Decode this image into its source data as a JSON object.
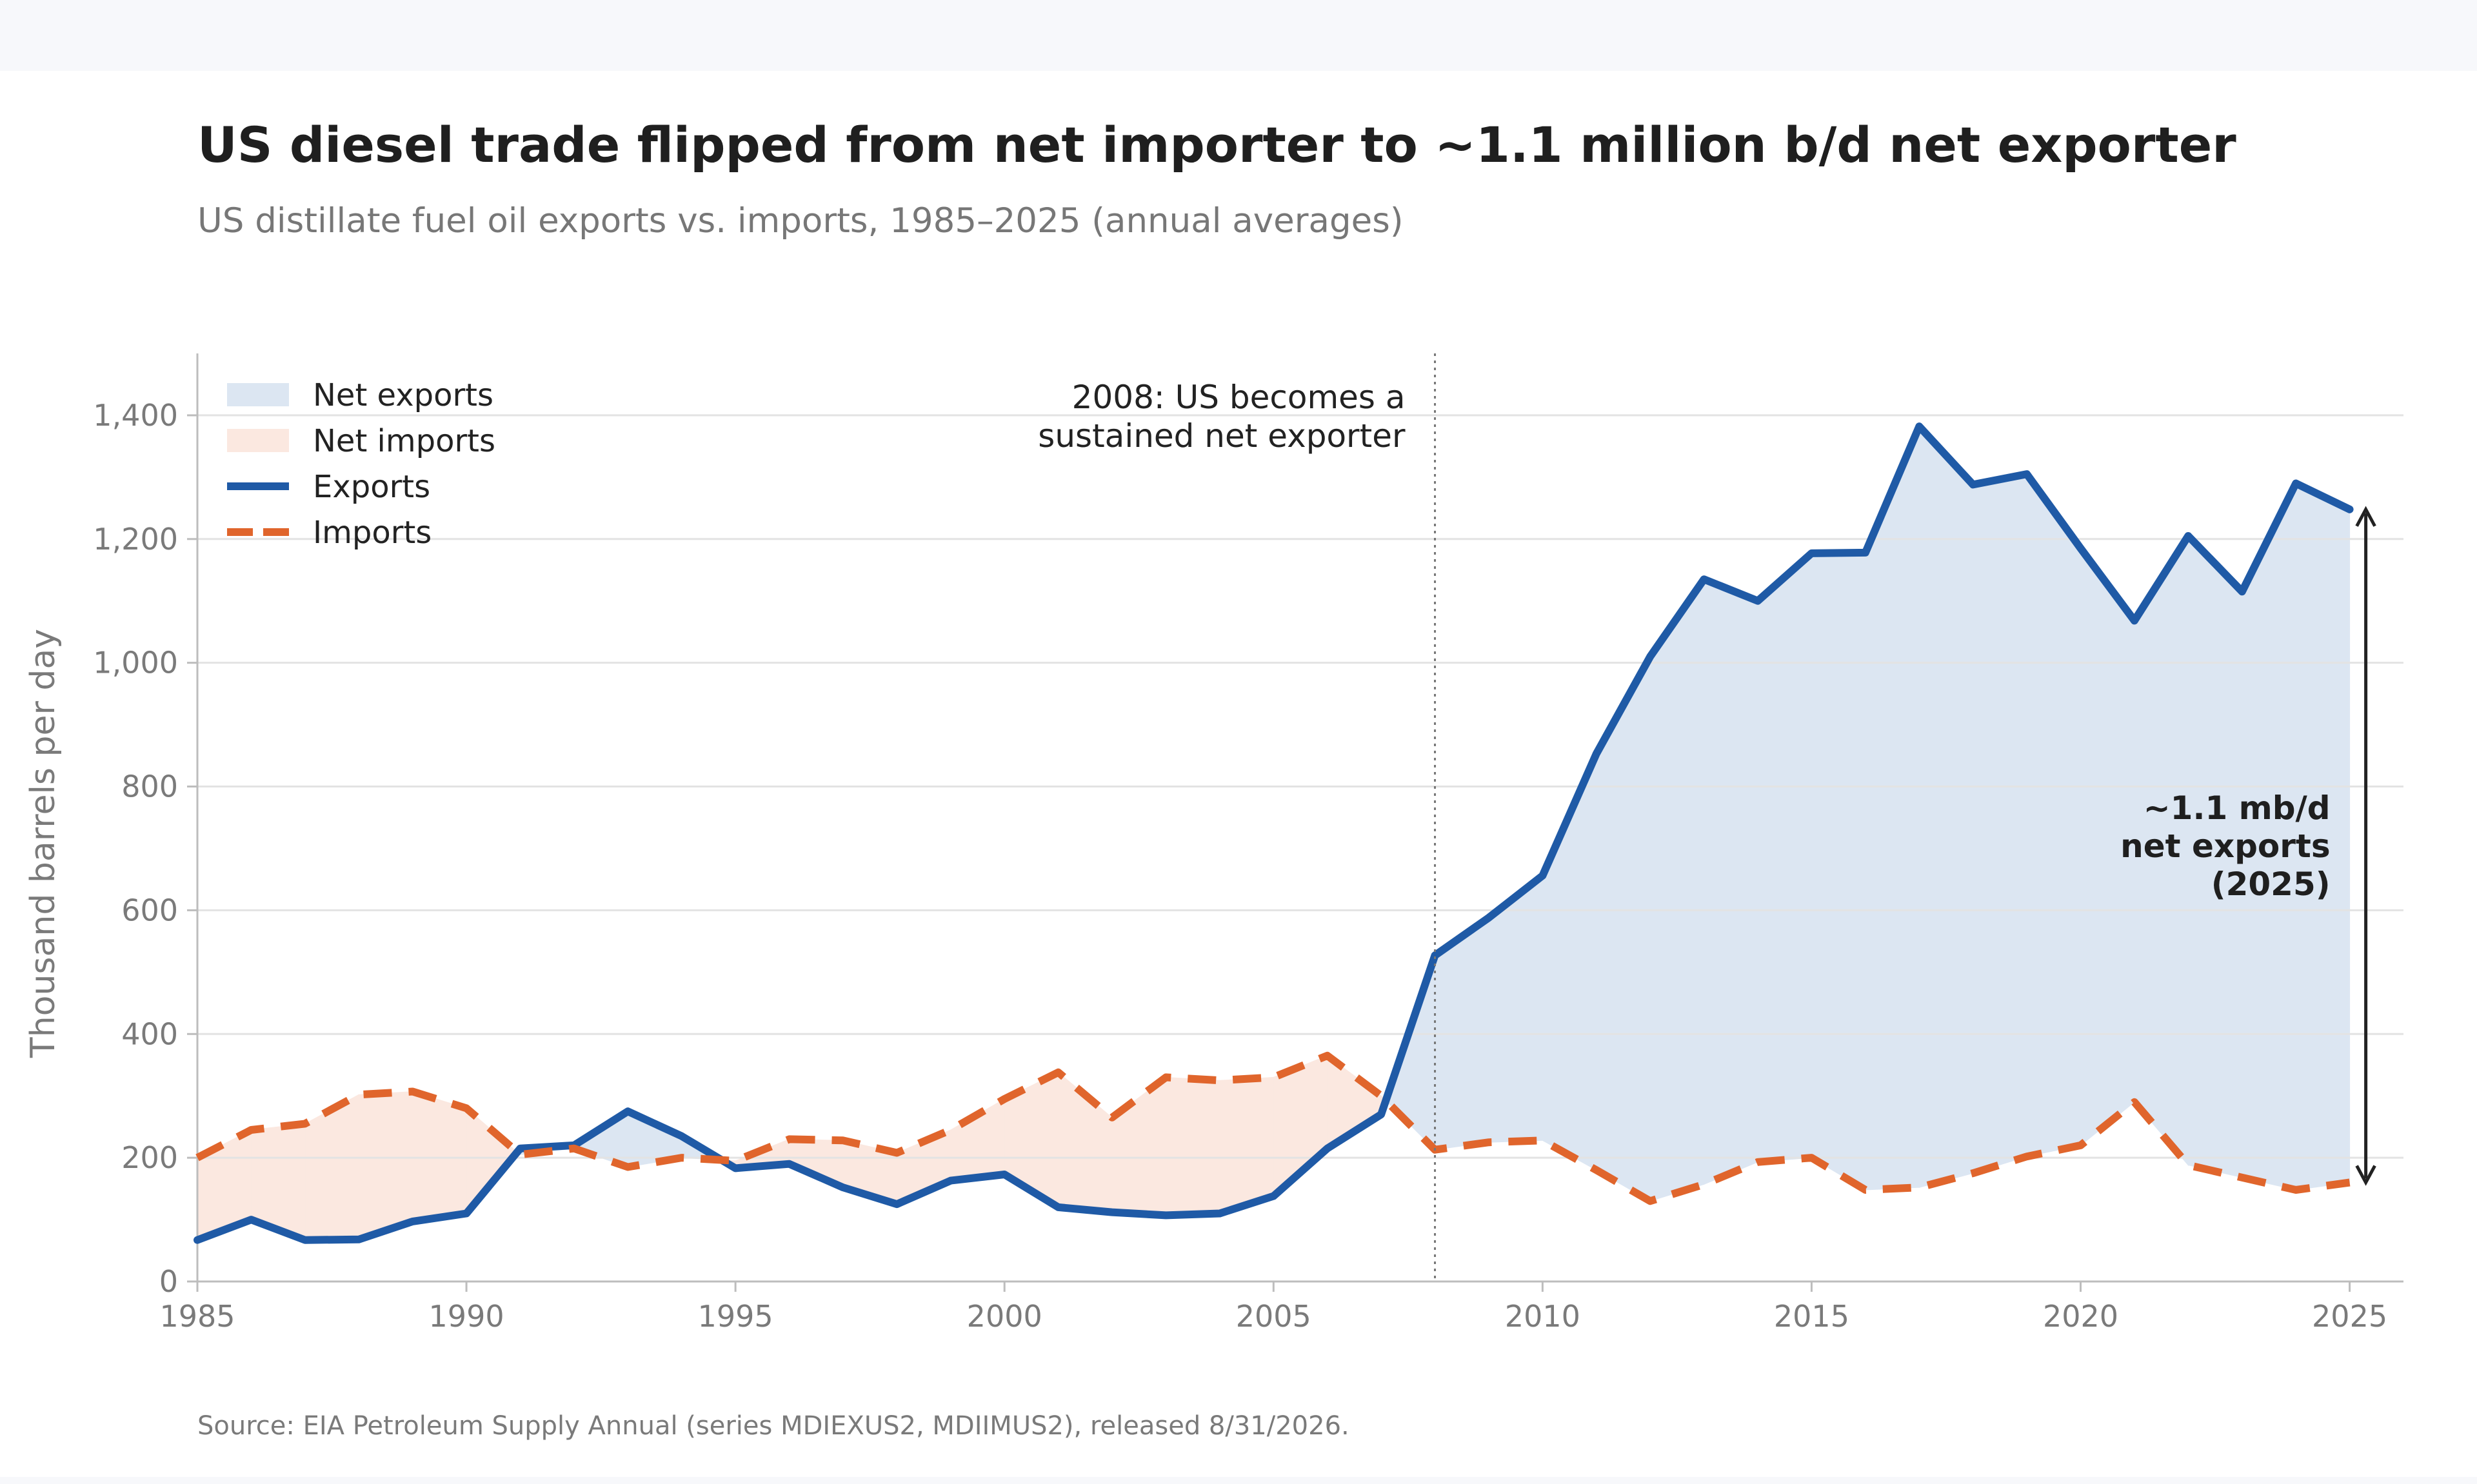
{
  "title": "US diesel trade flipped from net importer to ~1.1 million b/d net exporter",
  "subtitle": "US distillate fuel oil exports vs. imports, 1985–2025 (annual averages)",
  "source": "Source: EIA Petroleum Supply Annual (series MDIEXUS2, MDIIMUS2), released 8/31/2026.",
  "chart_data": {
    "type": "line",
    "x": [
      1985,
      1986,
      1987,
      1988,
      1989,
      1990,
      1991,
      1992,
      1993,
      1994,
      1995,
      1996,
      1997,
      1998,
      1999,
      2000,
      2001,
      2002,
      2003,
      2004,
      2005,
      2006,
      2007,
      2008,
      2009,
      2010,
      2011,
      2012,
      2013,
      2014,
      2015,
      2016,
      2017,
      2018,
      2019,
      2020,
      2021,
      2022,
      2023,
      2024,
      2025
    ],
    "series": [
      {
        "name": "Exports",
        "color": "#1f5aa6",
        "style": "solid",
        "values": [
          67,
          100,
          67,
          68,
          97,
          110,
          215,
          220,
          275,
          235,
          183,
          190,
          152,
          125,
          163,
          173,
          120,
          112,
          107,
          110,
          138,
          215,
          270,
          527,
          588,
          656,
          853,
          1010,
          1135,
          1100,
          1177,
          1178,
          1382,
          1288,
          1305,
          1185,
          1068,
          1205,
          1115,
          1290,
          1248
        ]
      },
      {
        "name": "Imports",
        "color": "#e0652c",
        "style": "dashed",
        "values": [
          200,
          245,
          255,
          302,
          307,
          280,
          205,
          215,
          185,
          200,
          195,
          230,
          228,
          208,
          245,
          295,
          338,
          265,
          330,
          325,
          330,
          365,
          300,
          213,
          225,
          228,
          180,
          130,
          157,
          193,
          200,
          148,
          152,
          175,
          202,
          220,
          290,
          188,
          168,
          148,
          160
        ]
      }
    ],
    "fill_legend": [
      {
        "name": "Net exports",
        "color": "#dce6f2"
      },
      {
        "name": "Net imports",
        "color": "#fbe8e0"
      }
    ],
    "xlim": [
      1985,
      2026
    ],
    "ylim": [
      0,
      1500
    ],
    "xticks": [
      1985,
      1990,
      1995,
      2000,
      2005,
      2010,
      2015,
      2020,
      2025
    ],
    "yticks": [
      0,
      200,
      400,
      600,
      800,
      1000,
      1200,
      1400
    ],
    "ytick_labels": [
      "0",
      "200",
      "400",
      "600",
      "800",
      "1,000",
      "1,200",
      "1,400"
    ],
    "xlabel": "",
    "ylabel": "Thousand barrels per day",
    "grid": "horizontal",
    "legend_position": "top-left",
    "annotations": {
      "vline_x": 2008,
      "vline_lines": [
        "2008: US becomes a",
        "sustained net exporter"
      ],
      "arrow_x": 2025.3,
      "arrow_from": 160,
      "arrow_to": 1248,
      "arrow_lines": [
        "~1.1 mb/d",
        "net exports",
        "(2025)"
      ]
    }
  }
}
